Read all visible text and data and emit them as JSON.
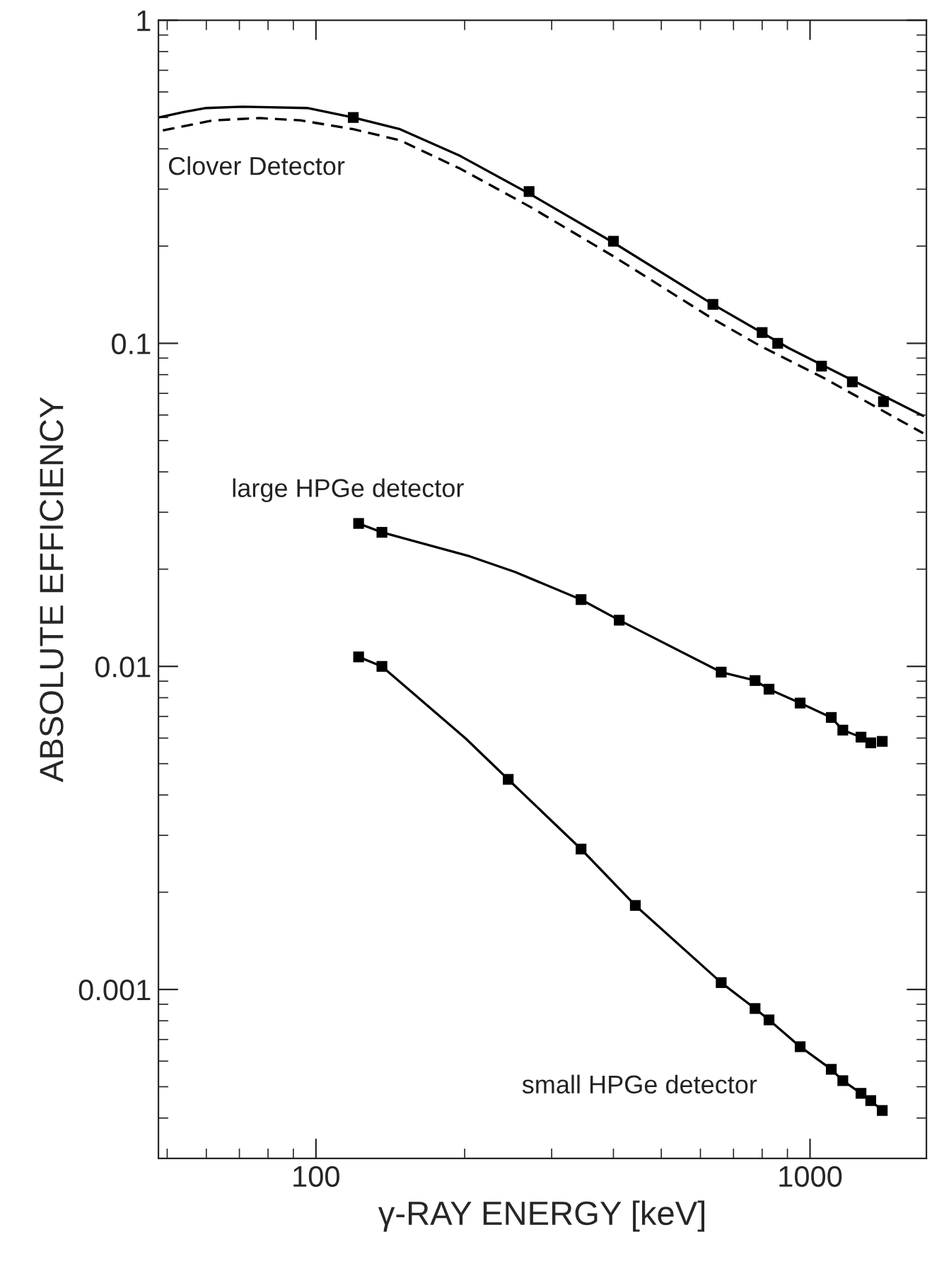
{
  "chart_data": {
    "type": "line",
    "xlabel": "γ-RAY ENERGY [keV]",
    "ylabel": "ABSOLUTE EFFICIENCY",
    "log": "xy",
    "grid": false,
    "xlim": [
      48,
      1720
    ],
    "ylim": [
      0.0003,
      1
    ],
    "xticks": [
      100,
      1000
    ],
    "yticks": [
      0.001,
      0.01,
      0.1,
      1
    ],
    "series": [
      {
        "marker": "none",
        "line_style": "solid",
        "color": "#000000",
        "x": [
          48,
          54,
          60,
          71,
          96,
          119,
          148,
          196,
          272,
          400,
          636,
          906,
          1694
        ],
        "values": [
          0.5,
          0.52,
          0.535,
          0.54,
          0.535,
          0.5,
          0.46,
          0.38,
          0.289,
          0.205,
          0.132,
          0.0966,
          0.0596
        ]
      },
      {
        "marker": "none",
        "line_style": "dashed",
        "color": "#000000",
        "x": [
          49,
          62,
          77,
          93,
          119,
          148,
          196,
          272,
          400,
          636,
          790,
          1068,
          1694
        ],
        "values": [
          0.456,
          0.49,
          0.498,
          0.49,
          0.46,
          0.425,
          0.347,
          0.264,
          0.186,
          0.119,
          0.0985,
          0.078,
          0.0527
        ]
      },
      {
        "type": "scatter",
        "marker": "square",
        "color": "#000000",
        "x": [
          119,
          270,
          400,
          636,
          800,
          860,
          1055,
          1218,
          1408
        ],
        "values": [
          0.5,
          0.295,
          0.207,
          0.132,
          0.108,
          0.1,
          0.085,
          0.076,
          0.066
        ]
      },
      {
        "marker": "none",
        "line_style": "solid",
        "color": "#000000",
        "x": [
          122,
          136,
          205,
          253,
          344,
          411,
          661,
          774,
          826,
          955,
          1104,
          1165,
          1268,
          1327
        ],
        "values": [
          0.0277,
          0.026,
          0.0219,
          0.0196,
          0.0161,
          0.0139,
          0.0096,
          0.00904,
          0.0085,
          0.0077,
          0.00695,
          0.00635,
          0.00604,
          0.0058
        ]
      },
      {
        "type": "scatter",
        "marker": "square",
        "color": "#000000",
        "x": [
          122,
          136,
          344,
          411,
          661,
          774,
          826,
          955,
          1104,
          1165,
          1268,
          1327,
          1400
        ],
        "values": [
          0.0277,
          0.026,
          0.0161,
          0.0139,
          0.0096,
          0.00904,
          0.0085,
          0.0077,
          0.00695,
          0.00635,
          0.00604,
          0.0058,
          0.00586
        ]
      },
      {
        "marker": "none",
        "line_style": "solid",
        "color": "#000000",
        "x": [
          122,
          136,
          201,
          245,
          344,
          443,
          661,
          774,
          826,
          955,
          1104,
          1165,
          1268,
          1327,
          1400
        ],
        "values": [
          0.0107,
          0.01,
          0.00598,
          0.00447,
          0.00272,
          0.00182,
          0.00105,
          0.000873,
          0.000805,
          0.000665,
          0.000566,
          0.000522,
          0.000477,
          0.000453,
          0.000422
        ]
      },
      {
        "type": "scatter",
        "marker": "square",
        "color": "#000000",
        "x": [
          122,
          136,
          245,
          344,
          443,
          661,
          774,
          826,
          955,
          1104,
          1165,
          1268,
          1327,
          1400
        ],
        "values": [
          0.0107,
          0.01,
          0.00447,
          0.00272,
          0.00182,
          0.00105,
          0.000873,
          0.000805,
          0.000665,
          0.000566,
          0.000522,
          0.000477,
          0.000453,
          0.000422
        ]
      }
    ],
    "annotations": [
      "Clover Detector",
      "large HPGe detector",
      "small HPGe detector"
    ]
  }
}
